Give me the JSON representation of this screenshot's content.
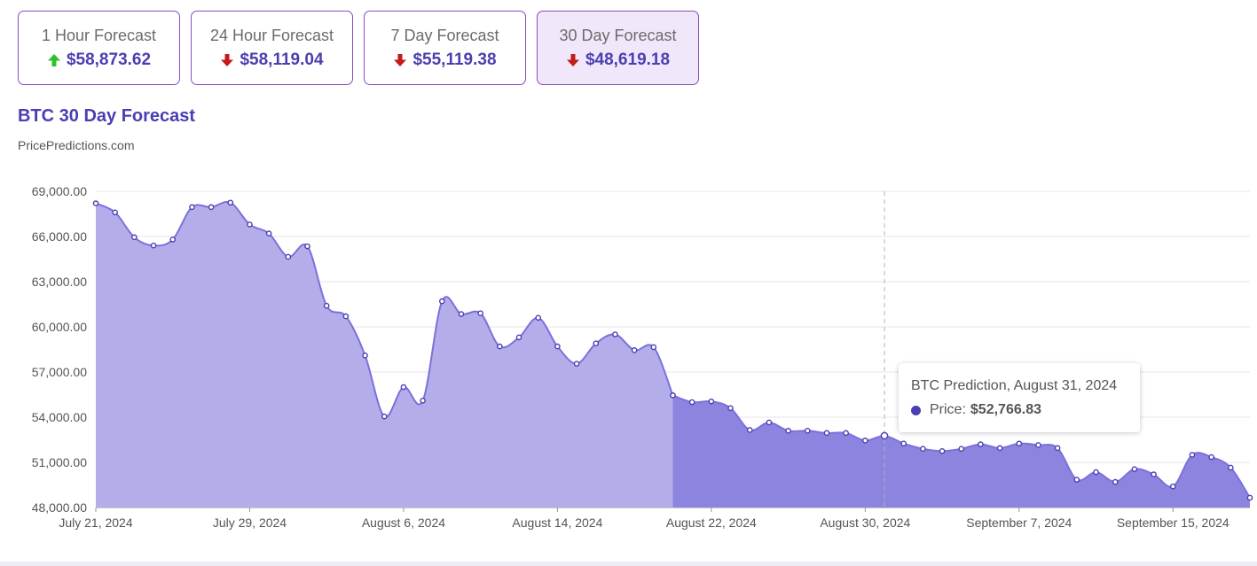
{
  "cards": [
    {
      "title": "1 Hour Forecast",
      "value": "$58,873.62",
      "direction": "up",
      "active": false
    },
    {
      "title": "24 Hour Forecast",
      "value": "$58,119.04",
      "direction": "down",
      "active": false
    },
    {
      "title": "7 Day Forecast",
      "value": "$55,119.38",
      "direction": "down",
      "active": false
    },
    {
      "title": "30 Day Forecast",
      "value": "$48,619.18",
      "direction": "down",
      "active": true
    }
  ],
  "colors": {
    "up": "#2fbf2f",
    "down": "#c41a1a",
    "accent": "#4a3fb0",
    "historical_fill": "#b3aeea",
    "forecast_fill": "#8d84e0",
    "line": "#7c70dc"
  },
  "chart_title": "BTC 30 Day Forecast",
  "source": "PricePredictions.com",
  "tooltip": {
    "title": "BTC Prediction, August 31, 2024",
    "label": "Price:",
    "value": "$52,766.83"
  },
  "chart_data": {
    "type": "area",
    "x_start": "2024-07-21",
    "ylim": [
      48000,
      69000
    ],
    "yticks": [
      "69,000.00",
      "66,000.00",
      "63,000.00",
      "60,000.00",
      "57,000.00",
      "54,000.00",
      "51,000.00",
      "48,000.00"
    ],
    "xticks": [
      "July 21, 2024",
      "July 29, 2024",
      "August 6, 2024",
      "August 14, 2024",
      "August 22, 2024",
      "August 30, 2024",
      "September 7, 2024",
      "September 15, 2024"
    ],
    "grid": true,
    "highlight_date": "2024-08-31",
    "series": [
      {
        "segment": "historical",
        "from": "2024-07-21",
        "values": [
          68200,
          67600,
          65950,
          65400,
          65800,
          67950,
          67950,
          68250,
          66800,
          66200,
          64650,
          65350,
          61400,
          60700,
          58100,
          54050,
          56000,
          55100,
          61700,
          60850,
          60900,
          58700,
          59300,
          60600,
          58700,
          57550,
          58900,
          59500,
          58450,
          58650,
          55450
        ]
      },
      {
        "segment": "forecast",
        "from": "2024-08-20",
        "values": [
          55450,
          55000,
          55050,
          54600,
          53150,
          53650,
          53100,
          53100,
          52950,
          52950,
          52450,
          52766.83,
          52250,
          51900,
          51750,
          51900,
          52200,
          51950,
          52250,
          52150,
          51950,
          49850,
          50350,
          49700,
          50550,
          50200,
          49400,
          51500,
          51350,
          50650,
          48650
        ]
      }
    ]
  }
}
